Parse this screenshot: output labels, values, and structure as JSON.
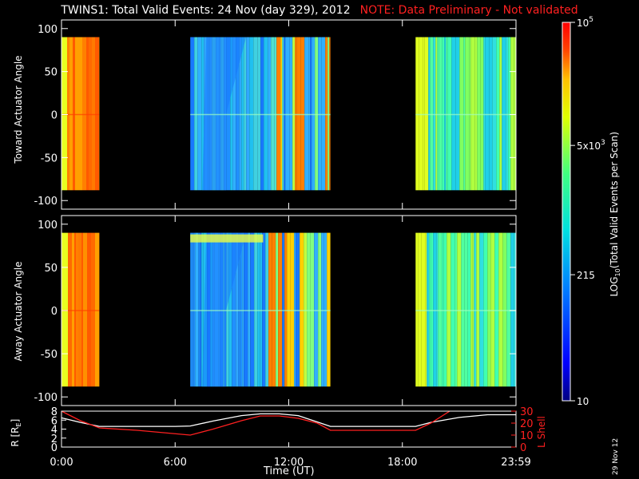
{
  "title": {
    "main": "TWINS1: Total Valid Events: 24 Nov (day 329), 2012",
    "note": "NOTE: Data Preliminary - Not validated"
  },
  "colors": {
    "background": "#000000",
    "axes": "#ffffff",
    "note": "#ff2020",
    "r_line": "#ffffff",
    "lshell_line": "#ff2020"
  },
  "date_stamp": "29 Nov 12",
  "chart_data": [
    {
      "type": "heatmap",
      "ylabel": "Toward Actuator Angle",
      "ylim": [
        -110,
        110
      ],
      "yticks": [
        100,
        50,
        0,
        -50,
        -100
      ],
      "xlim": [
        0,
        24
      ],
      "data_ylim": [
        -88,
        90
      ],
      "data_blocks": [
        {
          "start": 0.0,
          "end": 2.0,
          "level": "high"
        },
        {
          "start": 6.8,
          "end": 14.2,
          "level": "low"
        },
        {
          "start": 18.7,
          "end": 24.0,
          "level": "mid"
        }
      ]
    },
    {
      "type": "heatmap",
      "ylabel": "Away Actuator Angle",
      "ylim": [
        -110,
        110
      ],
      "yticks": [
        100,
        50,
        0,
        -50,
        -100
      ],
      "xlim": [
        0,
        24
      ],
      "data_ylim": [
        -88,
        90
      ],
      "data_blocks": [
        {
          "start": 0.0,
          "end": 2.0,
          "level": "high"
        },
        {
          "start": 6.8,
          "end": 14.2,
          "level": "low"
        },
        {
          "start": 18.7,
          "end": 24.0,
          "level": "mid"
        }
      ]
    },
    {
      "type": "line",
      "ylabel_left": "R [R",
      "ylabel_left_sub": "E",
      "ylabel_left_end": "]",
      "ylabel_right": "L Shell",
      "xlabel": "Time (UT)",
      "xticks": [
        "0:00",
        "6:00",
        "12:00",
        "18:00",
        "23:59"
      ],
      "xtick_values": [
        0,
        6,
        12,
        18,
        24
      ],
      "xlim": [
        0,
        24
      ],
      "ylim_left": [
        0,
        8
      ],
      "yticks_left": [
        8,
        6,
        4,
        2,
        0
      ],
      "ylim_right": [
        0,
        30
      ],
      "yticks_right": [
        30,
        20,
        10,
        0
      ],
      "series": [
        {
          "name": "R",
          "axis": "left",
          "x": [
            0,
            1,
            2,
            4,
            6,
            6.8,
            8,
            9.5,
            10.5,
            11.5,
            12.5,
            13.5,
            14.2,
            16,
            18,
            18.7,
            19.5,
            21,
            22.5,
            24
          ],
          "y": [
            6.5,
            5.5,
            4.6,
            4.6,
            4.6,
            4.7,
            5.8,
            7.0,
            7.4,
            7.4,
            7.0,
            5.6,
            4.6,
            4.6,
            4.6,
            4.6,
            5.5,
            6.6,
            7.2,
            7.2
          ]
        },
        {
          "name": "L Shell",
          "axis": "right",
          "x": [
            0,
            1,
            2,
            4,
            6.8,
            8,
            9.5,
            10.5,
            11.5,
            12.5,
            13.5,
            14.2,
            16,
            18,
            18.7,
            19.5,
            20.5
          ],
          "y": [
            30,
            22,
            16,
            14,
            10,
            15,
            22,
            26,
            26,
            24,
            20,
            14,
            14,
            14,
            14,
            20,
            30
          ]
        }
      ]
    }
  ],
  "colorbar": {
    "label_pre": "LOG",
    "label_sub": "10",
    "label_post": "(Total Valid Events per Scan)",
    "scale": "log",
    "range": [
      10,
      100000
    ],
    "ticks": [
      {
        "value": 100000,
        "label": "10",
        "sup": "5"
      },
      {
        "value": 5000,
        "label": "5x10",
        "sup": "3"
      },
      {
        "value": 215,
        "label": "215",
        "sup": ""
      },
      {
        "value": 10,
        "label": "10",
        "sup": ""
      }
    ]
  }
}
